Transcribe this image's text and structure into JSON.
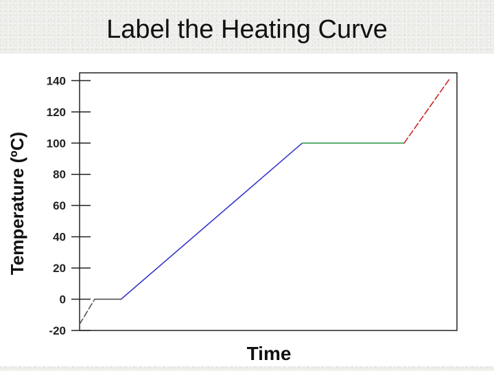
{
  "slide": {
    "title": "Label the Heating Curve"
  },
  "chart_data": {
    "type": "line",
    "title": "",
    "xlabel": "Time",
    "ylabel": "Temperature (ºC)",
    "ylim": [
      -20,
      145
    ],
    "xlim": [
      0,
      100
    ],
    "yticks": [
      -20,
      0,
      20,
      40,
      60,
      80,
      100,
      120,
      140
    ],
    "grid": false,
    "segments": [
      {
        "color": "#555555",
        "dashed": true,
        "points": [
          [
            0,
            -16
          ],
          [
            4,
            0
          ]
        ]
      },
      {
        "color": "#444444",
        "dashed": false,
        "points": [
          [
            4,
            0
          ],
          [
            11,
            0
          ]
        ]
      },
      {
        "color": "#3636c8",
        "dashed": false,
        "points": [
          [
            11,
            0
          ],
          [
            59,
            100
          ]
        ]
      },
      {
        "color": "#2e9a4a",
        "dashed": false,
        "points": [
          [
            59,
            100
          ],
          [
            86,
            100
          ]
        ]
      },
      {
        "color": "#cc2222",
        "dashed": true,
        "points": [
          [
            86,
            100
          ],
          [
            98,
            141
          ]
        ]
      }
    ]
  }
}
